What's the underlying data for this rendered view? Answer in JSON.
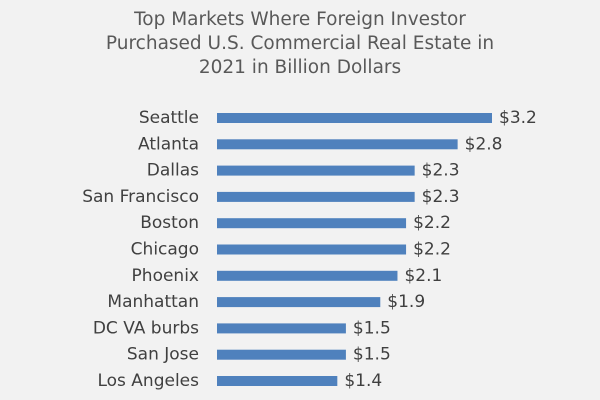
{
  "chart_data": {
    "type": "bar",
    "orientation": "horizontal",
    "title_lines": [
      "Top Markets Where Foreign Investor",
      "Purchased  U.S. Commercial Real Estate in",
      "2021 in Billion Dollars"
    ],
    "categories": [
      "Seattle",
      "Atlanta",
      "Dallas",
      "San Francisco",
      "Boston",
      "Chicago",
      "Phoenix",
      "Manhattan",
      "DC VA burbs",
      "San Jose",
      "Los Angeles"
    ],
    "values": [
      3.2,
      2.8,
      2.3,
      2.3,
      2.2,
      2.2,
      2.1,
      1.9,
      1.5,
      1.5,
      1.4
    ],
    "data_labels": [
      "$3.2",
      "$2.8",
      "$2.3",
      "$2.3",
      "$2.2",
      "$2.2",
      "$2.1",
      "$1.9",
      "$1.5",
      "$1.5",
      "$1.4"
    ],
    "xlim": [
      0,
      3.2
    ],
    "bar_color": "#4f81bd",
    "grid": false,
    "legend": "none"
  }
}
